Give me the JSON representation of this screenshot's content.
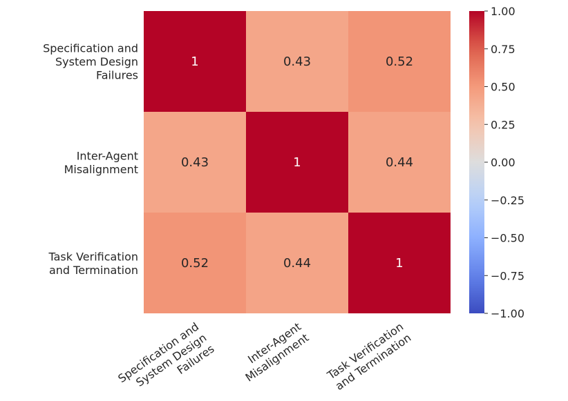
{
  "chart_data": {
    "type": "heatmap",
    "title": "",
    "xlabel": "",
    "ylabel": "",
    "rows": [
      [
        "Specification and",
        "System Design",
        "Failures"
      ],
      [
        "Inter-Agent",
        "Misalignment"
      ],
      [
        "Task Verification",
        "and Termination"
      ]
    ],
    "columns": [
      [
        "Specification and",
        "System Design",
        "Failures"
      ],
      [
        "Inter-Agent",
        "Misalignment"
      ],
      [
        "Task Verification",
        "and Termination"
      ]
    ],
    "values": [
      [
        1,
        0.43,
        0.52
      ],
      [
        0.43,
        1,
        0.44
      ],
      [
        0.52,
        0.44,
        1
      ]
    ],
    "annotations": [
      [
        "1",
        "0.43",
        "0.52"
      ],
      [
        "0.43",
        "1",
        "0.44"
      ],
      [
        "0.52",
        "0.44",
        "1"
      ]
    ],
    "colormap": "coolwarm",
    "vmin": -1,
    "vmax": 1,
    "colorbar_ticks": [
      "1.00",
      "0.75",
      "0.50",
      "0.25",
      "0.00",
      "−0.25",
      "−0.50",
      "−0.75",
      "−1.00"
    ],
    "colorbar_tick_values": [
      1,
      0.75,
      0.5,
      0.25,
      0,
      -0.25,
      -0.5,
      -0.75,
      -1
    ]
  }
}
